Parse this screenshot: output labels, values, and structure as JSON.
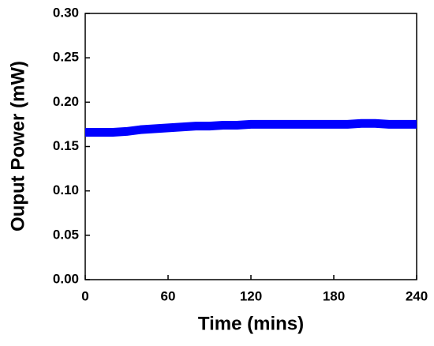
{
  "chart_data": {
    "type": "line",
    "x_label": "Time (mins)",
    "y_label": "Ouput Power (mW)",
    "x": [
      0,
      10,
      20,
      30,
      40,
      50,
      60,
      70,
      80,
      90,
      100,
      110,
      120,
      130,
      140,
      150,
      160,
      170,
      180,
      190,
      200,
      210,
      220,
      230,
      240
    ],
    "series": [
      {
        "color": "#0000ff",
        "values": [
          0.166,
          0.166,
          0.166,
          0.167,
          0.169,
          0.17,
          0.171,
          0.172,
          0.173,
          0.173,
          0.174,
          0.174,
          0.175,
          0.175,
          0.175,
          0.175,
          0.175,
          0.175,
          0.175,
          0.175,
          0.176,
          0.176,
          0.175,
          0.175,
          0.175
        ]
      }
    ],
    "xlim": [
      0,
      240
    ],
    "xticks": [
      0,
      60,
      120,
      180,
      240
    ],
    "ylim": [
      0,
      0.3
    ],
    "yticks": [
      {
        "value": 0,
        "label": "0.00"
      },
      {
        "value": 0.05,
        "label": "0.05"
      },
      {
        "value": 0.1,
        "label": "0.10"
      },
      {
        "value": 0.15,
        "label": "0.15"
      },
      {
        "value": 0.2,
        "label": "0.20"
      },
      {
        "value": 0.25,
        "label": "0.25"
      },
      {
        "value": 0.3,
        "label": "0.30"
      }
    ]
  }
}
